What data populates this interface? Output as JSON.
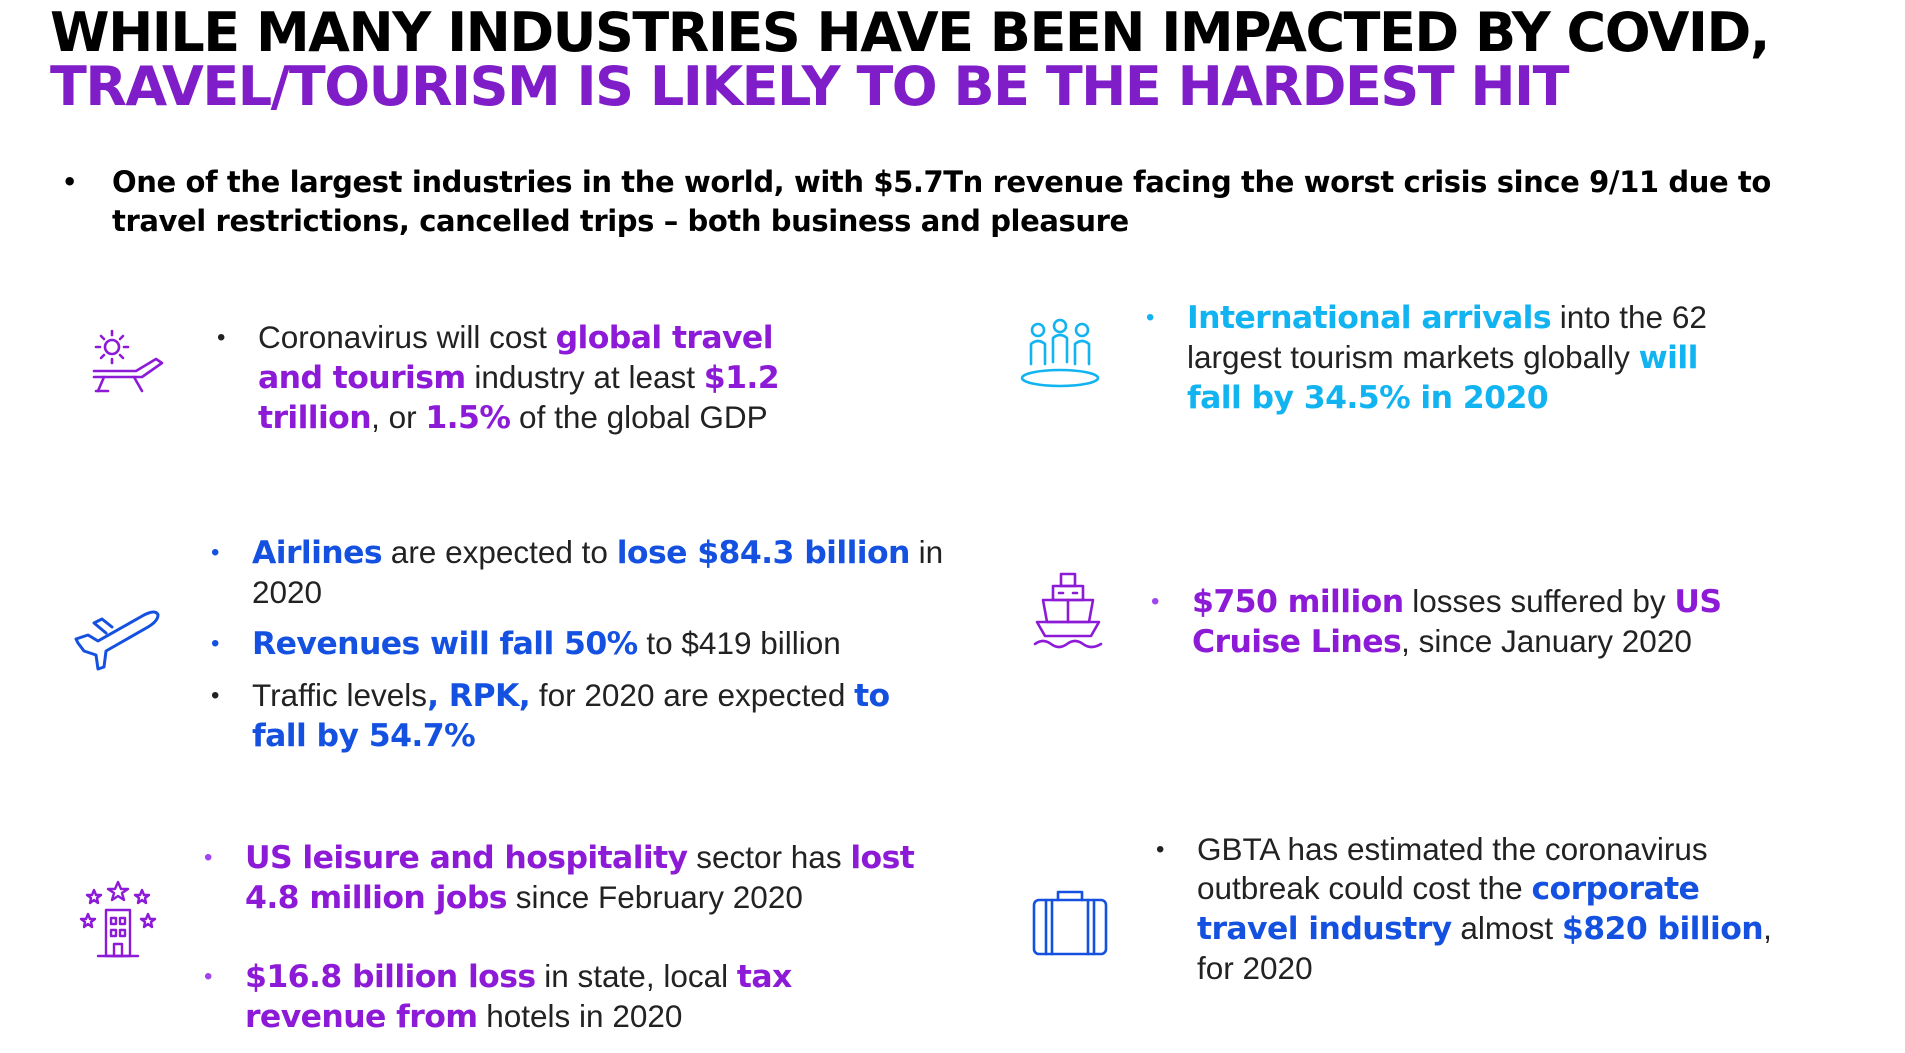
{
  "title": {
    "line1": "WHILE MANY INDUSTRIES HAVE BEEN IMPACTED BY COVID,",
    "line2": "TRAVEL/TOURISM IS LIKELY TO BE THE HARDEST HIT"
  },
  "intro": "One of the largest industries in the world, with $5.7Tn revenue facing the worst crisis since 9/11 due to travel restrictions, cancelled trips – both business and pleasure",
  "blocks": {
    "tourism": {
      "icon": "sun-lounger-icon",
      "t1": "Coronavirus will cost ",
      "h1": "global travel and tourism",
      "t2": " industry at least ",
      "h2": "$1.2 trillion",
      "t3": ", or ",
      "h3": "1.5%",
      "t4": " of the global GDP"
    },
    "arrivals": {
      "icon": "people-group-icon",
      "h1": "International arrivals",
      "t1": " into the 62 largest tourism markets globally ",
      "h2": "will fall by 34.5% in 2020"
    },
    "airlines": {
      "icon": "airplane-icon",
      "i1_h1": "Airlines",
      "i1_t1": " are expected to ",
      "i1_h2": "lose $84.3 billion",
      "i1_t2": " in 2020",
      "i2_h1": "Revenues will fall 50%",
      "i2_t1": " to $419 billion",
      "i3_t1": "Traffic levels",
      "i3_h1": ", RPK,",
      "i3_t2": " for 2020 are expected ",
      "i3_h2": "to fall by 54.7%"
    },
    "cruise": {
      "icon": "cruise-ship-icon",
      "h1": "$750 million",
      "t1": " losses suffered by ",
      "h2": "US Cruise Lines",
      "t2": ", since January 2020"
    },
    "hospitality": {
      "icon": "hotel-stars-icon",
      "i1_h1": "US leisure and hospitality",
      "i1_t1": " sector has ",
      "i1_h2": "lost 4.8 million jobs",
      "i1_t2": " since February 2020",
      "i2_h1": "$16.8 billion loss",
      "i2_t1": " in state, local ",
      "i2_h2": "tax revenue from",
      "i2_t2": " hotels in 2020"
    },
    "corporate": {
      "icon": "suitcase-icon",
      "t1": "GBTA has estimated the coronavirus outbreak could cost the ",
      "h1": "corporate travel industry",
      "t2": " almost ",
      "h2": "$820 billion",
      "t3": ", for 2020"
    }
  },
  "colors": {
    "purple": "#8c1ad6",
    "blue": "#1451e0",
    "cyan": "#11b3f0"
  }
}
